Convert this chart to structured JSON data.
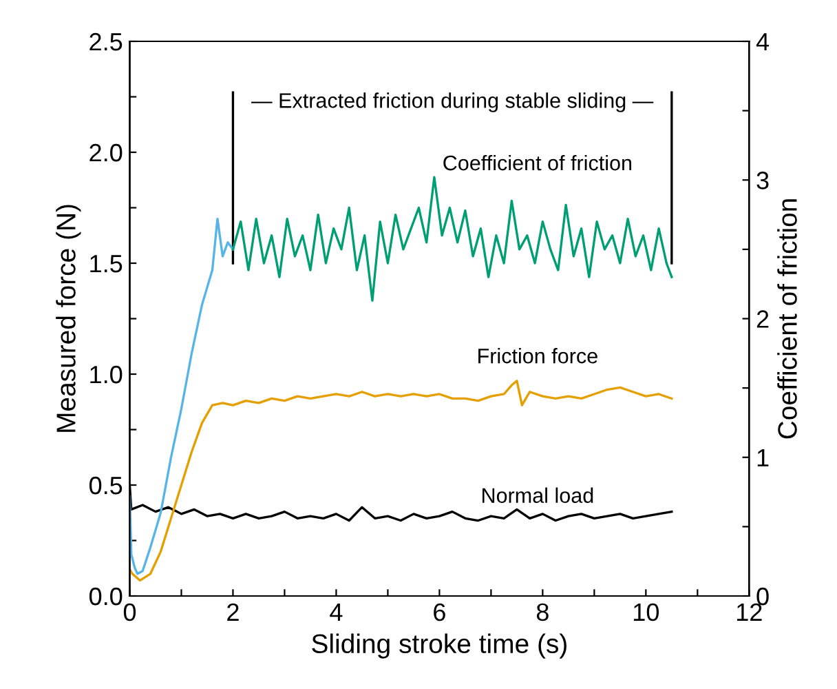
{
  "chart_data": {
    "type": "line",
    "xlabel": "Sliding stroke time (s)",
    "ylabel": "Measured force (N)",
    "y2label": "Coefficient of friction",
    "xlim": [
      0,
      12
    ],
    "xticks": [
      0,
      {
        "value": 1,
        "label": null
      },
      2,
      {
        "value": 3,
        "label": null
      },
      4,
      {
        "value": 5,
        "label": null
      },
      6,
      {
        "value": 7,
        "label": null
      },
      8,
      {
        "value": 9,
        "label": null
      },
      10,
      {
        "value": 11,
        "label": null
      },
      12
    ],
    "ylim": [
      0,
      2.5
    ],
    "yticks": [
      {
        "value": 0,
        "label": "0.0"
      },
      {
        "value": 0.25,
        "label": null
      },
      {
        "value": 0.5,
        "label": "0.5"
      },
      {
        "value": 0.75,
        "label": null
      },
      {
        "value": 1.0,
        "label": "1.0"
      },
      {
        "value": 1.25,
        "label": null
      },
      {
        "value": 1.5,
        "label": "1.5"
      },
      {
        "value": 1.75,
        "label": null
      },
      {
        "value": 2.0,
        "label": "2.0"
      },
      {
        "value": 2.25,
        "label": null
      },
      {
        "value": 2.5,
        "label": "2.5"
      }
    ],
    "y2lim": [
      0,
      4
    ],
    "y2ticks": [
      0,
      {
        "value": 0.5,
        "label": null
      },
      1,
      {
        "value": 1.5,
        "label": null
      },
      2,
      {
        "value": 2.5,
        "label": null
      },
      3,
      {
        "value": 3.5,
        "label": null
      },
      4
    ],
    "grid": false,
    "legend": false,
    "line_style": "solid",
    "marker": "none",
    "series": [
      {
        "name": "Normal load",
        "color": "#000000",
        "x": [
          0,
          0.03,
          0.25,
          0.5,
          0.75,
          1.0,
          1.25,
          1.5,
          1.75,
          2.0,
          2.25,
          2.5,
          2.75,
          3.0,
          3.25,
          3.5,
          3.75,
          4.0,
          4.25,
          4.5,
          4.75,
          5.0,
          5.25,
          5.5,
          5.75,
          6.0,
          6.25,
          6.5,
          6.75,
          7.0,
          7.25,
          7.5,
          7.75,
          8.0,
          8.25,
          8.5,
          8.75,
          9.0,
          9.25,
          9.5,
          9.75,
          10.0,
          10.25,
          10.5
        ],
        "values": [
          0.5,
          0.39,
          0.41,
          0.38,
          0.4,
          0.37,
          0.39,
          0.36,
          0.37,
          0.35,
          0.37,
          0.35,
          0.36,
          0.38,
          0.35,
          0.36,
          0.35,
          0.37,
          0.34,
          0.4,
          0.35,
          0.36,
          0.34,
          0.37,
          0.35,
          0.36,
          0.38,
          0.35,
          0.34,
          0.36,
          0.35,
          0.39,
          0.35,
          0.37,
          0.34,
          0.36,
          0.37,
          0.35,
          0.36,
          0.37,
          0.35,
          0.36,
          0.37,
          0.38
        ]
      },
      {
        "name": "Friction force",
        "color": "#e69f00",
        "x": [
          0,
          0.05,
          0.2,
          0.4,
          0.6,
          0.8,
          1.0,
          1.2,
          1.4,
          1.6,
          1.8,
          2.0,
          2.25,
          2.5,
          2.75,
          3.0,
          3.25,
          3.5,
          3.75,
          4.0,
          4.25,
          4.5,
          4.75,
          5.0,
          5.25,
          5.5,
          5.75,
          6.0,
          6.25,
          6.5,
          6.75,
          7.0,
          7.25,
          7.4,
          7.5,
          7.6,
          7.75,
          8.0,
          8.25,
          8.5,
          8.75,
          9.0,
          9.25,
          9.5,
          9.75,
          10.0,
          10.25,
          10.5
        ],
        "values": [
          0.12,
          0.1,
          0.07,
          0.1,
          0.2,
          0.35,
          0.5,
          0.65,
          0.78,
          0.86,
          0.87,
          0.86,
          0.88,
          0.87,
          0.89,
          0.88,
          0.9,
          0.89,
          0.9,
          0.91,
          0.9,
          0.92,
          0.9,
          0.91,
          0.9,
          0.91,
          0.9,
          0.91,
          0.89,
          0.89,
          0.88,
          0.9,
          0.91,
          0.95,
          0.97,
          0.86,
          0.92,
          0.9,
          0.89,
          0.9,
          0.89,
          0.91,
          0.93,
          0.94,
          0.92,
          0.9,
          0.91,
          0.89
        ]
      },
      {
        "color": "#56b4e9",
        "axis": "y2",
        "x": [
          0,
          0.03,
          0.1,
          0.15,
          0.25,
          0.4,
          0.6,
          0.8,
          1.0,
          1.2,
          1.4,
          1.6,
          1.7,
          1.8,
          1.9,
          2.0
        ],
        "values": [
          0.72,
          0.3,
          0.2,
          0.16,
          0.18,
          0.35,
          0.6,
          1.0,
          1.35,
          1.75,
          2.1,
          2.35,
          2.72,
          2.45,
          2.55,
          2.5
        ]
      },
      {
        "name": "Coefficient of friction",
        "color": "#009e73",
        "axis": "y2",
        "x": [
          2.0,
          2.15,
          2.3,
          2.45,
          2.6,
          2.75,
          2.9,
          3.05,
          3.2,
          3.35,
          3.5,
          3.65,
          3.8,
          3.95,
          4.1,
          4.25,
          4.4,
          4.55,
          4.7,
          4.85,
          5.0,
          5.15,
          5.3,
          5.45,
          5.6,
          5.75,
          5.9,
          6.05,
          6.2,
          6.35,
          6.5,
          6.65,
          6.8,
          6.95,
          7.1,
          7.25,
          7.4,
          7.55,
          7.7,
          7.85,
          8.0,
          8.15,
          8.3,
          8.45,
          8.6,
          8.75,
          8.9,
          9.05,
          9.2,
          9.35,
          9.5,
          9.65,
          9.8,
          9.95,
          10.1,
          10.25,
          10.4,
          10.5
        ],
        "values": [
          2.5,
          2.7,
          2.35,
          2.72,
          2.4,
          2.6,
          2.3,
          2.72,
          2.45,
          2.6,
          2.35,
          2.75,
          2.4,
          2.65,
          2.5,
          2.8,
          2.35,
          2.6,
          2.13,
          2.7,
          2.4,
          2.75,
          2.5,
          2.65,
          2.8,
          2.55,
          3.02,
          2.6,
          2.8,
          2.55,
          2.78,
          2.45,
          2.65,
          2.3,
          2.6,
          2.4,
          2.85,
          2.5,
          2.6,
          2.4,
          2.7,
          2.5,
          2.35,
          2.82,
          2.45,
          2.65,
          2.3,
          2.7,
          2.5,
          2.6,
          2.4,
          2.72,
          2.45,
          2.6,
          2.35,
          2.65,
          2.4,
          2.3
        ]
      }
    ],
    "ref_lines": [
      {
        "axis": "x",
        "value": 2,
        "color": "#000000"
      },
      {
        "axis": "x",
        "value": 10.5,
        "color": "#000000"
      }
    ],
    "annotations": [
      "— Extracted friction during stable sliding —"
    ]
  }
}
